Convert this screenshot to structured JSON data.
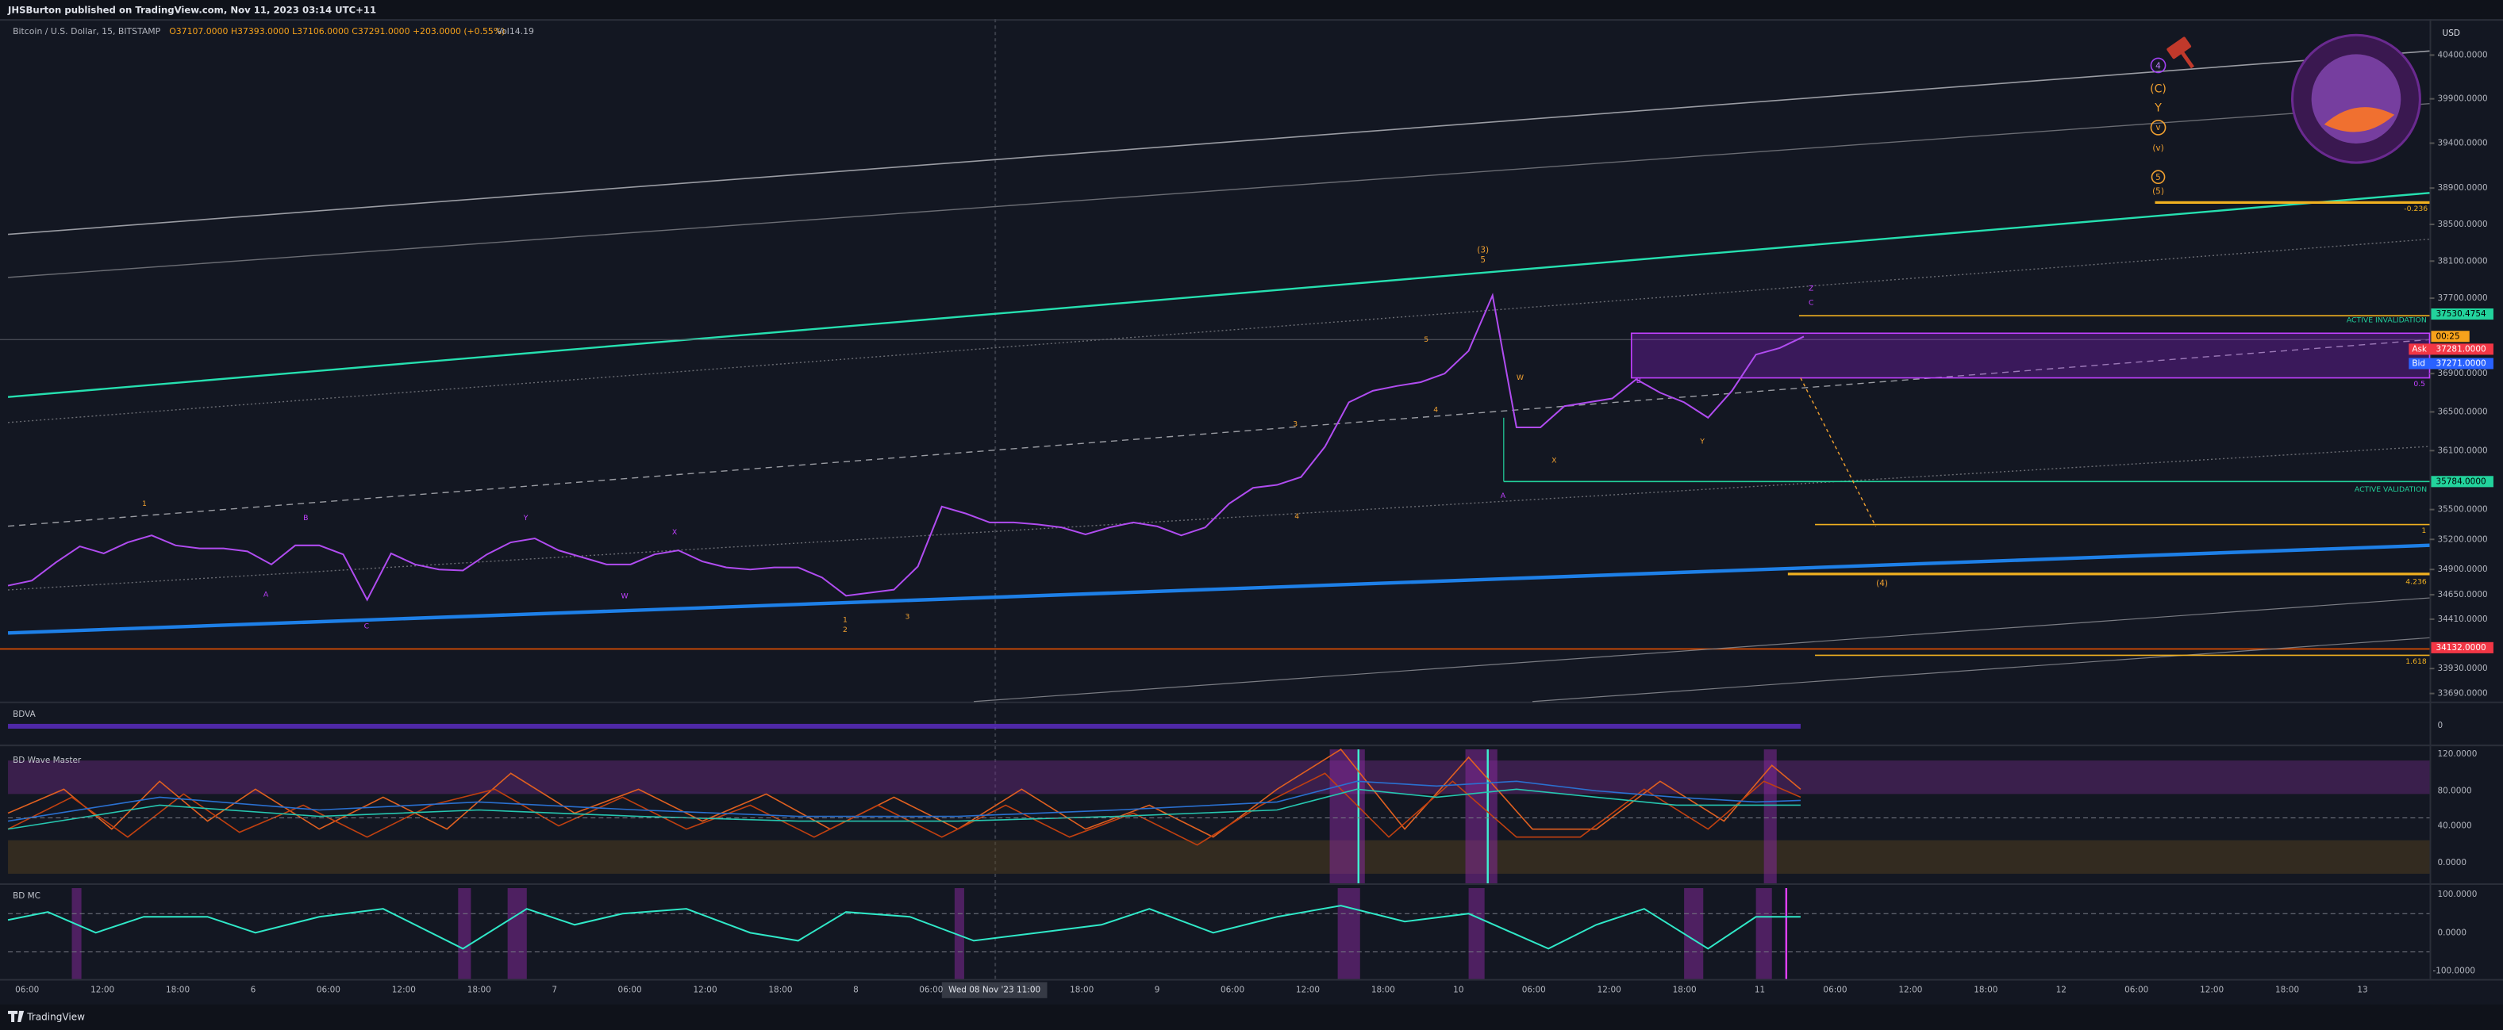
{
  "header": {
    "publisher": "JHSBurton published on TradingView.com, Nov 11, 2023 03:14 UTC+11"
  },
  "symbol": {
    "name": "Bitcoin / U.S. Dollar, 15, BITSTAMP",
    "ohlc": "O37107.0000 H37393.0000 L37106.0000 C37291.0000 +203.0000 (+0.55%)",
    "volume": "Vol14.19"
  },
  "chart_data": {
    "type": "line",
    "currency": "USD",
    "log_scale": true,
    "color": "#b04cf0",
    "values": [
      34740,
      34790,
      34970,
      35130,
      35060,
      35170,
      35240,
      35140,
      35110,
      35110,
      35080,
      34950,
      35140,
      35140,
      35050,
      34600,
      35060,
      34950,
      34900,
      34890,
      35050,
      35170,
      35210,
      35090,
      35020,
      34950,
      34950,
      35050,
      35090,
      34980,
      34920,
      34900,
      34920,
      34920,
      34820,
      34640,
      34670,
      34700,
      34930,
      35530,
      35460,
      35370,
      35370,
      35350,
      35320,
      35250,
      35320,
      35370,
      35330,
      35240,
      35320,
      35560,
      35720,
      35750,
      35830,
      36140,
      36600,
      36720,
      36770,
      36810,
      36900,
      37140,
      37730,
      36340,
      36340,
      36560,
      36600,
      36640,
      36840,
      36700,
      36600,
      36440,
      36720,
      37100,
      37170,
      37291
    ],
    "ylim": [
      33613,
      40815
    ],
    "yticks": [
      {
        "value": 40400,
        "label": "40400.0000"
      },
      {
        "value": 39900,
        "label": "39900.0000"
      },
      {
        "value": 39400,
        "label": "39400.0000"
      },
      {
        "value": 38900,
        "label": "38900.0000"
      },
      {
        "value": 38500,
        "label": "38500.0000"
      },
      {
        "value": 38100,
        "label": "38100.0000"
      },
      {
        "value": 37700,
        "label": "37700.0000"
      },
      {
        "value": 36900,
        "label": "36900.0000"
      },
      {
        "value": 36500,
        "label": "36500.0000"
      },
      {
        "value": 36100,
        "label": "36100.0000"
      },
      {
        "value": 35500,
        "label": "35500.0000"
      },
      {
        "value": 35200,
        "label": "35200.0000"
      },
      {
        "value": 34900,
        "label": "34900.0000"
      },
      {
        "value": 34650,
        "label": "34650.0000"
      },
      {
        "value": 34410,
        "label": "34410.0000"
      },
      {
        "value": 33930,
        "label": "33930.0000"
      },
      {
        "value": 33690,
        "label": "33690.0000"
      }
    ]
  },
  "price_tags": [
    {
      "value": 37530.4754,
      "label": "37530.4754",
      "color": "#22d39c",
      "text_color": "#000000"
    },
    {
      "value": 35784,
      "label": "35784.0000",
      "color": "#22d39c",
      "text_color": "#000000"
    },
    {
      "value": 34132,
      "label": "34132.0000",
      "color": "#f23645",
      "text_color": "#ffffff"
    }
  ],
  "quote": {
    "countdown": "00:25",
    "ask_label": "Ask",
    "ask": "37281.0000",
    "bid_label": "Bid",
    "bid": "37271.0000"
  },
  "annotations": {
    "invalidation": "ACTIVE INVALIDATION",
    "validation": "ACTIVE VALIDATION",
    "fib_236": "-0.236",
    "fib_05": "0.5",
    "fib_1": "1",
    "fib_4236": "4.236",
    "fib_1618": "1.618",
    "wave_3": "(3)",
    "wave_3_sub": "5",
    "wave_4": "(4)",
    "wave_c": "(C)",
    "wave_y": "Y",
    "wave_v": "(v)",
    "wave_5": "(5)",
    "circle_4": "4",
    "circle_v": "v",
    "circle_5": "5",
    "letters": [
      "1",
      "A",
      "B",
      "C",
      "W",
      "X",
      "Y",
      "1",
      "2",
      "3",
      "3",
      "4",
      "5",
      "4",
      "W",
      "X",
      "Y",
      "Z",
      "A",
      "B",
      "C"
    ]
  },
  "panels": [
    {
      "title": "BDVA",
      "ticks": [
        "0"
      ]
    },
    {
      "title": "BD Wave Master",
      "ticks": [
        "120.0000",
        "80.0000",
        "40.0000",
        "0.0000"
      ]
    },
    {
      "title": "BD MC",
      "ticks": [
        "100.0000",
        "0.0000",
        "-100.0000"
      ]
    }
  ],
  "time_axis": {
    "labels": [
      "06:00",
      "12:00",
      "18:00",
      "6",
      "06:00",
      "12:00",
      "18:00",
      "7",
      "06:00",
      "12:00",
      "18:00",
      "8",
      "06:00",
      null,
      "18:00",
      "9",
      "06:00",
      "12:00",
      "18:00",
      "10",
      "06:00",
      "12:00",
      "18:00",
      "11",
      "06:00",
      "12:00",
      "18:00",
      "12",
      "06:00",
      "12:00",
      "18:00",
      "13"
    ],
    "cursor": "Wed 08 Nov '23  11:00"
  },
  "footer": {
    "brand": "TradingView"
  }
}
